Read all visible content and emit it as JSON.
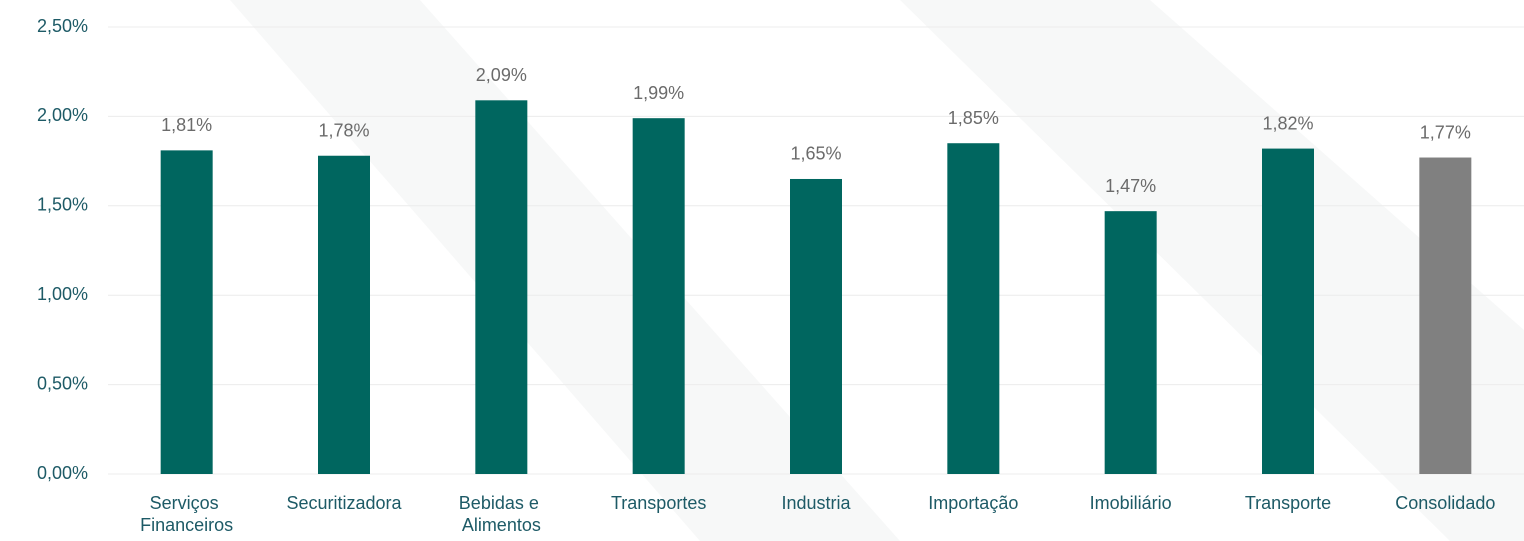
{
  "chart_data": {
    "type": "bar",
    "categories": [
      "Serviços Financeiros",
      "Securitizadora",
      "Bebidas e Alimentos",
      "Transportes",
      "Industria",
      "Importação",
      "Imobiliário",
      "Transporte",
      "Consolidado"
    ],
    "values": [
      1.81,
      1.78,
      2.09,
      1.99,
      1.65,
      1.85,
      1.47,
      1.82,
      1.77
    ],
    "value_labels": [
      "1,81%",
      "1,78%",
      "2,09%",
      "1,99%",
      "1,65%",
      "1,85%",
      "1,47%",
      "1,82%",
      "1,77%"
    ],
    "colors": [
      "#00665f",
      "#00665f",
      "#00665f",
      "#00665f",
      "#00665f",
      "#00665f",
      "#00665f",
      "#00665f",
      "#808080"
    ],
    "ylim": [
      0,
      2.5
    ],
    "yticks": [
      {
        "value": 0,
        "label": "0,00%"
      },
      {
        "value": 0.5,
        "label": "0,50%"
      },
      {
        "value": 1,
        "label": "1,00%"
      },
      {
        "value": 1.5,
        "label": "1,50%"
      },
      {
        "value": 2,
        "label": "2,00%"
      },
      {
        "value": 2.5,
        "label": "2,50%"
      }
    ],
    "grid": true
  }
}
